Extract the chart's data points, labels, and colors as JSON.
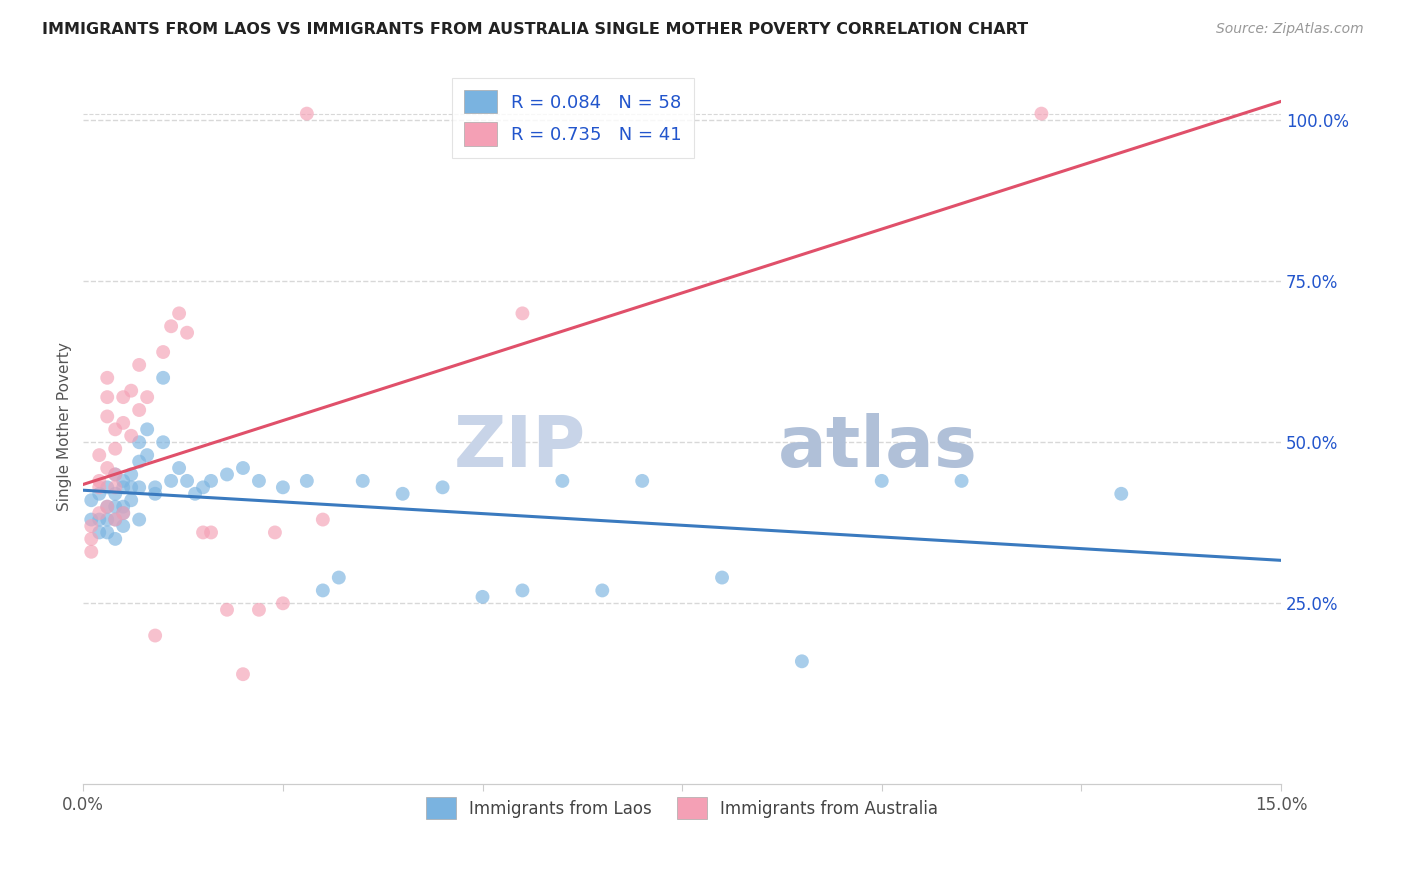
{
  "title": "IMMIGRANTS FROM LAOS VS IMMIGRANTS FROM AUSTRALIA SINGLE MOTHER POVERTY CORRELATION CHART",
  "source": "Source: ZipAtlas.com",
  "ylabel": "Single Mother Poverty",
  "legend_label_blue": "Immigrants from Laos",
  "legend_label_pink": "Immigrants from Australia",
  "R_blue": 0.084,
  "N_blue": 58,
  "R_pink": 0.735,
  "N_pink": 41,
  "blue_color": "#7ab3e0",
  "pink_color": "#f4a0b5",
  "blue_line_color": "#3a7abf",
  "pink_line_color": "#e0506a",
  "legend_R_color": "#2255cc",
  "watermark_zip_color": "#d0d8e8",
  "watermark_atlas_color": "#b8c8e0",
  "title_color": "#222222",
  "source_color": "#999999",
  "background_color": "#ffffff",
  "grid_color": "#d8d8d8",
  "blue_x": [
    0.001,
    0.001,
    0.002,
    0.002,
    0.002,
    0.003,
    0.003,
    0.003,
    0.003,
    0.004,
    0.004,
    0.004,
    0.004,
    0.004,
    0.005,
    0.005,
    0.005,
    0.005,
    0.005,
    0.006,
    0.006,
    0.006,
    0.007,
    0.007,
    0.007,
    0.007,
    0.008,
    0.008,
    0.009,
    0.009,
    0.01,
    0.01,
    0.011,
    0.012,
    0.013,
    0.014,
    0.015,
    0.016,
    0.018,
    0.02,
    0.022,
    0.025,
    0.028,
    0.03,
    0.032,
    0.035,
    0.04,
    0.045,
    0.05,
    0.055,
    0.06,
    0.065,
    0.07,
    0.08,
    0.09,
    0.1,
    0.11,
    0.13
  ],
  "blue_y": [
    0.38,
    0.41,
    0.38,
    0.42,
    0.36,
    0.4,
    0.43,
    0.38,
    0.36,
    0.4,
    0.38,
    0.42,
    0.45,
    0.35,
    0.39,
    0.43,
    0.4,
    0.37,
    0.44,
    0.43,
    0.41,
    0.45,
    0.5,
    0.47,
    0.43,
    0.38,
    0.52,
    0.48,
    0.43,
    0.42,
    0.6,
    0.5,
    0.44,
    0.46,
    0.44,
    0.42,
    0.43,
    0.44,
    0.45,
    0.46,
    0.44,
    0.43,
    0.44,
    0.27,
    0.29,
    0.44,
    0.42,
    0.43,
    0.26,
    0.27,
    0.44,
    0.27,
    0.44,
    0.29,
    0.16,
    0.44,
    0.44,
    0.42
  ],
  "pink_x": [
    0.001,
    0.001,
    0.001,
    0.002,
    0.002,
    0.002,
    0.002,
    0.003,
    0.003,
    0.003,
    0.003,
    0.003,
    0.004,
    0.004,
    0.004,
    0.004,
    0.004,
    0.005,
    0.005,
    0.005,
    0.006,
    0.006,
    0.007,
    0.007,
    0.008,
    0.009,
    0.01,
    0.011,
    0.012,
    0.013,
    0.015,
    0.016,
    0.018,
    0.02,
    0.022,
    0.024,
    0.025,
    0.028,
    0.03,
    0.055,
    0.12
  ],
  "pink_y": [
    0.37,
    0.35,
    0.33,
    0.48,
    0.44,
    0.43,
    0.39,
    0.6,
    0.57,
    0.54,
    0.46,
    0.4,
    0.52,
    0.49,
    0.45,
    0.43,
    0.38,
    0.57,
    0.53,
    0.39,
    0.58,
    0.51,
    0.62,
    0.55,
    0.57,
    0.2,
    0.64,
    0.68,
    0.7,
    0.67,
    0.36,
    0.36,
    0.24,
    0.14,
    0.24,
    0.36,
    0.25,
    1.01,
    0.38,
    0.7,
    1.01
  ],
  "xlim": [
    0.0,
    0.15
  ],
  "ylim": [
    -0.03,
    1.08
  ],
  "xticks": [
    0.0,
    0.025,
    0.05,
    0.075,
    0.1,
    0.125,
    0.15
  ],
  "yticks_right": [
    0.25,
    0.5,
    0.75,
    1.0
  ],
  "marker_size": 100,
  "blue_line_x0": 0.0,
  "blue_line_x1": 0.15,
  "pink_line_x0": 0.0,
  "pink_line_x1": 0.15
}
